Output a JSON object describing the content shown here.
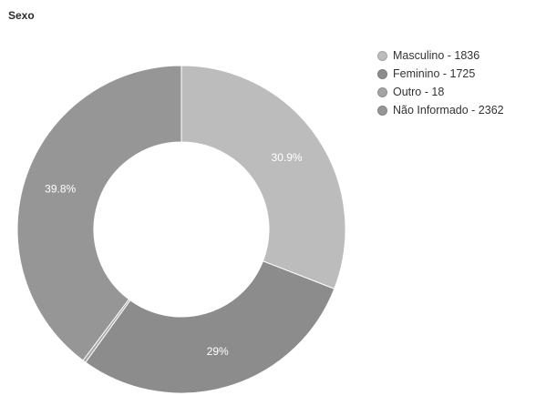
{
  "chart_data": {
    "type": "pie",
    "title": "Sexo",
    "donut": true,
    "slices": [
      {
        "label": "Masculino - 1836",
        "value": 1836,
        "percent_label": "30.9%",
        "color": "#bcbcbc"
      },
      {
        "label": "Feminino - 1725",
        "value": 1725,
        "percent_label": "29%",
        "color": "#8c8c8c"
      },
      {
        "label": "Outro - 18",
        "value": 18,
        "percent_label": "",
        "color": "#a4a4a4"
      },
      {
        "label": "Não Informado - 2362",
        "value": 2362,
        "percent_label": "39.8%",
        "color": "#969696"
      }
    ],
    "legend_position": "top-right"
  }
}
